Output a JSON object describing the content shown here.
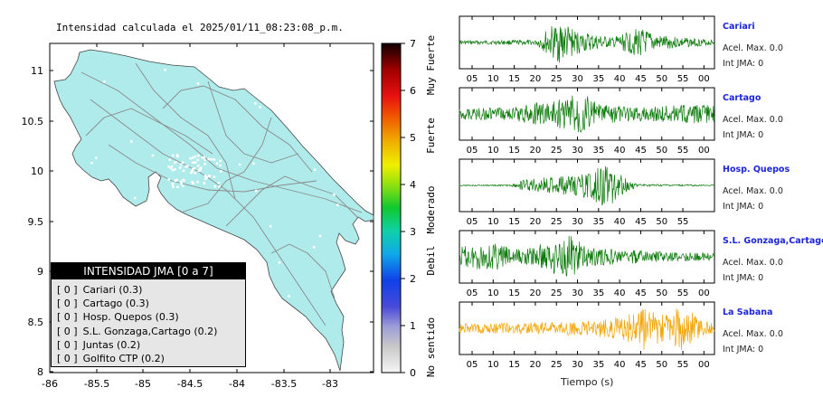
{
  "map": {
    "title": "Intensidad calculada el 2025/01/11_08:23:08_p.m.",
    "x_ticks": [
      "-86",
      "-85.5",
      "-85",
      "-84.5",
      "-84",
      "-83.5",
      "-83"
    ],
    "y_ticks": [
      "11",
      "10.5",
      "10",
      "9.5",
      "9",
      "8.5",
      "8"
    ],
    "land_color": "#b0ebec",
    "border_color": "#8a8a8a"
  },
  "colorbar": {
    "ticks": [
      "0",
      "1",
      "2",
      "3",
      "4",
      "5",
      "6",
      "7"
    ],
    "labels": [
      "No sentido",
      "Debil",
      "Moderado",
      "Fuerte",
      "Muy Fuerte"
    ]
  },
  "legend": {
    "header": "INTENSIDAD JMA [0 a 7]",
    "rows": [
      {
        "value": "[ 0 ]",
        "name": "Cariari (0.3)"
      },
      {
        "value": "[ 0 ]",
        "name": "Cartago (0.3)"
      },
      {
        "value": "[ 0 ]",
        "name": "Hosp. Quepos (0.3)"
      },
      {
        "value": "[ 0 ]",
        "name": "S.L. Gonzaga,Cartago (0.2)"
      },
      {
        "value": "[ 0 ]",
        "name": "Juntas (0.2)"
      },
      {
        "value": "[ 0 ]",
        "name": "Golfito CTP (0.2)"
      }
    ]
  },
  "stations": [
    {
      "name": "Cariari",
      "accel": "Acel. Max. 0.0",
      "jma": "Int JMA: 0",
      "color": "#0b7a0b",
      "ticks": [
        "05",
        "10",
        "15",
        "20",
        "25",
        "30",
        "35",
        "40",
        "45",
        "50",
        "55",
        "00"
      ]
    },
    {
      "name": "Cartago",
      "accel": "Acel. Max. 0.0",
      "jma": "Int JMA: 0",
      "color": "#0b7a0b",
      "ticks": [
        "05",
        "10",
        "15",
        "20",
        "25",
        "30",
        "35",
        "40",
        "45",
        "50",
        "55",
        "00"
      ]
    },
    {
      "name": "Hosp. Quepos",
      "accel": "Acel. Max. 0.0",
      "jma": "Int JMA: 0",
      "color": "#0b7a0b",
      "ticks": [
        "05",
        "10",
        "15",
        "20",
        "25",
        "30",
        "35",
        "40",
        "45",
        "50",
        "55"
      ]
    },
    {
      "name": "S.L. Gonzaga,Cartago",
      "accel": "Acel. Max. 0.0",
      "jma": "Int JMA: 0",
      "color": "#0b7a0b",
      "ticks": [
        "05",
        "10",
        "15",
        "20",
        "25",
        "30",
        "35",
        "40",
        "45",
        "50",
        "55",
        "00"
      ]
    },
    {
      "name": "La Sabana",
      "accel": "Acel. Max. 0.0",
      "jma": "Int JMA: 0",
      "color": "#f2a400",
      "ticks": [
        "05",
        "10",
        "15",
        "20",
        "25",
        "30",
        "35",
        "40",
        "45",
        "50",
        "55",
        "00"
      ]
    }
  ],
  "time_axis_label": "Tiempo (s)"
}
